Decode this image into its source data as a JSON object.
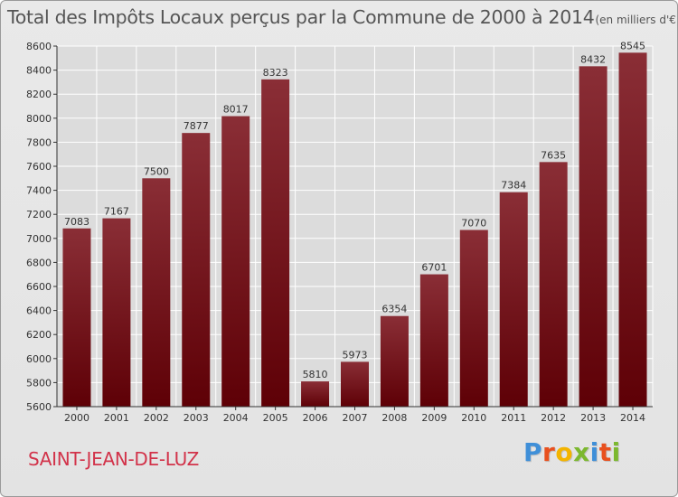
{
  "chart_data": {
    "type": "bar",
    "title": "Total des Impôts Locaux perçus par la Commune de 2000 à 2014",
    "unit_label": "(en milliers d'€)",
    "categories": [
      "2000",
      "2001",
      "2002",
      "2003",
      "2004",
      "2005",
      "2006",
      "2007",
      "2008",
      "2009",
      "2010",
      "2011",
      "2012",
      "2013",
      "2014"
    ],
    "values": [
      7083,
      7167,
      7500,
      7877,
      8017,
      8323,
      5810,
      5973,
      6354,
      6701,
      7070,
      7384,
      7635,
      8432,
      8545
    ],
    "ylim": [
      5600,
      8600
    ],
    "yticks": [
      5600,
      5800,
      6000,
      6200,
      6400,
      6600,
      6800,
      7000,
      7200,
      7400,
      7600,
      7800,
      8000,
      8200,
      8400,
      8600
    ],
    "grid": true,
    "xlabel": "",
    "ylabel": "",
    "colors": {
      "bar_top": "#8a2e36",
      "bar_bottom": "#5e0006",
      "grid": "#ffffff",
      "text": "#333333"
    }
  },
  "footer": {
    "commune": "SAINT-JEAN-DE-LUZ",
    "logo_letters": [
      "P",
      "r",
      "o",
      "x",
      "i",
      "t",
      "i"
    ],
    "logo_colors": [
      "#3f8fd8",
      "#e8501e",
      "#f3b400",
      "#7cb82f",
      "#3f8fd8",
      "#e8501e",
      "#7cb82f"
    ]
  }
}
